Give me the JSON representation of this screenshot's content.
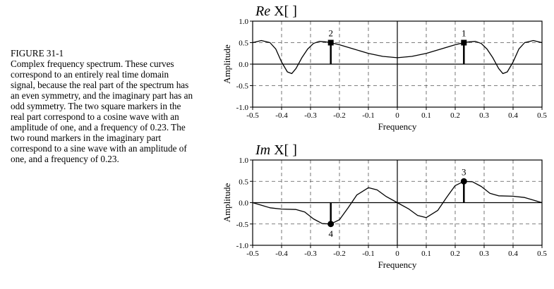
{
  "caption": {
    "title": "FIGURE 31-1",
    "text": "Complex frequency spectrum.  These curves correspond to an entirely real time domain signal, because the real part of the spectrum has an even symmetry, and the imaginary part has an odd symmetry. The two square markers in the real part correspond to a cosine wave with an amplitude of one, and a frequency of 0.23.  The two round markers in the imaginary part correspond to a sine wave with an amplitude of one, and a frequency of 0.23."
  },
  "chart_data": [
    {
      "type": "line",
      "title_prefix": "Re",
      "title_main": "X[ ]",
      "xlabel": "Frequency",
      "ylabel": "Amplitude",
      "xlim": [
        -0.5,
        0.5
      ],
      "ylim": [
        -1.0,
        1.0
      ],
      "x_ticks": [
        -0.5,
        -0.4,
        -0.3,
        -0.2,
        -0.1,
        0.0,
        0.1,
        0.2,
        0.3,
        0.4,
        0.5
      ],
      "x_tick_labels": [
        "-0.5",
        "-0.4",
        "-0.3",
        "-0.2",
        "-0.1",
        "0",
        "0.1",
        "0.2",
        "0.3",
        "0.4",
        "0.5"
      ],
      "y_ticks": [
        -1.0,
        -0.5,
        0.0,
        0.5,
        1.0
      ],
      "y_tick_labels": [
        "-1.0",
        "-0.5",
        "0.0",
        "0.5",
        "1.0"
      ],
      "grid": true,
      "grid_style": "dashed",
      "series": [
        {
          "x": [
            -0.5,
            -0.47,
            -0.44,
            -0.42,
            -0.4,
            -0.38,
            -0.365,
            -0.35,
            -0.33,
            -0.31,
            -0.29,
            -0.27,
            -0.25,
            -0.23,
            -0.2,
            -0.15,
            -0.1,
            -0.05,
            0.0,
            0.05,
            0.1,
            0.15,
            0.2,
            0.23,
            0.25,
            0.27,
            0.29,
            0.31,
            0.33,
            0.35,
            0.365,
            0.38,
            0.4,
            0.42,
            0.44,
            0.47,
            0.5
          ],
          "y": [
            0.5,
            0.55,
            0.5,
            0.35,
            0.05,
            -0.18,
            -0.22,
            -0.1,
            0.15,
            0.35,
            0.48,
            0.53,
            0.52,
            0.5,
            0.45,
            0.35,
            0.25,
            0.18,
            0.15,
            0.18,
            0.25,
            0.35,
            0.45,
            0.5,
            0.52,
            0.53,
            0.48,
            0.35,
            0.15,
            -0.1,
            -0.22,
            -0.18,
            0.05,
            0.35,
            0.5,
            0.55,
            0.5
          ]
        }
      ],
      "markers": [
        {
          "label": "2",
          "x": -0.23,
          "y": 0.5,
          "shape": "square"
        },
        {
          "label": "1",
          "x": 0.23,
          "y": 0.5,
          "shape": "square"
        }
      ]
    },
    {
      "type": "line",
      "title_prefix": "Im",
      "title_main": "X[ ]",
      "xlabel": "Frequency",
      "ylabel": "Amplitude",
      "xlim": [
        -0.5,
        0.5
      ],
      "ylim": [
        -1.0,
        1.0
      ],
      "x_ticks": [
        -0.5,
        -0.4,
        -0.3,
        -0.2,
        -0.1,
        0.0,
        0.1,
        0.2,
        0.3,
        0.4,
        0.5
      ],
      "x_tick_labels": [
        "-0.5",
        "-0.4",
        "-0.3",
        "-0.2",
        "-0.1",
        "0",
        "0.1",
        "0.2",
        "0.3",
        "0.4",
        "0.5"
      ],
      "y_ticks": [
        -1.0,
        -0.5,
        0.0,
        0.5,
        1.0
      ],
      "y_tick_labels": [
        "-1.0",
        "-0.5",
        "0.0",
        "0.5",
        "1.0"
      ],
      "grid": true,
      "grid_style": "dashed",
      "series": [
        {
          "x": [
            -0.5,
            -0.47,
            -0.44,
            -0.4,
            -0.35,
            -0.32,
            -0.29,
            -0.26,
            -0.23,
            -0.2,
            -0.17,
            -0.14,
            -0.1,
            -0.07,
            -0.04,
            0.0,
            0.04,
            0.07,
            0.1,
            0.14,
            0.17,
            0.2,
            0.23,
            0.26,
            0.29,
            0.32,
            0.35,
            0.4,
            0.44,
            0.47,
            0.5
          ],
          "y": [
            0.0,
            -0.06,
            -0.12,
            -0.15,
            -0.16,
            -0.22,
            -0.38,
            -0.49,
            -0.5,
            -0.4,
            -0.12,
            0.18,
            0.35,
            0.3,
            0.15,
            0.0,
            -0.15,
            -0.3,
            -0.35,
            -0.18,
            0.12,
            0.4,
            0.5,
            0.49,
            0.38,
            0.22,
            0.16,
            0.15,
            0.12,
            0.06,
            0.0
          ]
        }
      ],
      "markers": [
        {
          "label": "4",
          "x": -0.23,
          "y": -0.5,
          "shape": "circle",
          "label_pos": "below"
        },
        {
          "label": "3",
          "x": 0.23,
          "y": 0.5,
          "shape": "circle",
          "label_pos": "above"
        }
      ]
    }
  ]
}
